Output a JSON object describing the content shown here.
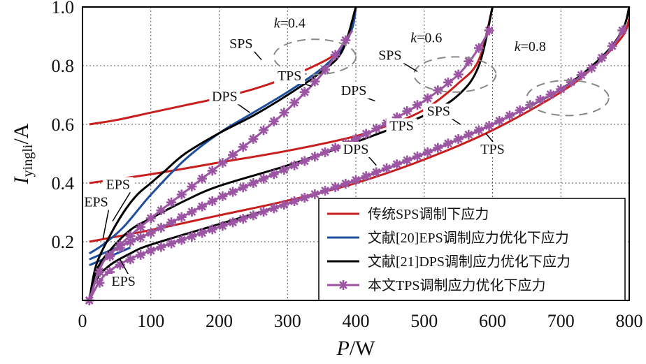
{
  "chart_data": {
    "type": "line",
    "xlabel_main": "P",
    "xlabel_unit": "/W",
    "ylabel_main": "I",
    "ylabel_sub": "yingli",
    "ylabel_unit": "/A",
    "xlim": [
      0,
      800
    ],
    "ylim": [
      0,
      1.0
    ],
    "xticks": [
      0,
      100,
      200,
      300,
      400,
      500,
      600,
      700,
      800
    ],
    "yticks": [
      0.2,
      0.4,
      0.6,
      0.8,
      1.0
    ],
    "ytick_labels": [
      "0.2",
      "0.4",
      "0.6",
      "0.8",
      "1.0"
    ],
    "grid": true,
    "legend_position": "bottom-right",
    "series": [
      {
        "name": "传统SPS调制下应力",
        "color": "#c81e1e",
        "marker": "none",
        "curves": [
          {
            "k": "0.4",
            "x": [
              10,
              50,
              100,
              150,
              200,
              250,
              300,
              340,
              370,
              390,
              400
            ],
            "y": [
              0.6,
              0.615,
              0.64,
              0.665,
              0.69,
              0.72,
              0.76,
              0.8,
              0.84,
              0.9,
              1.0
            ]
          },
          {
            "k": "0.6",
            "x": [
              10,
              100,
              200,
              300,
              400,
              450,
              500,
              550,
              580,
              600
            ],
            "y": [
              0.4,
              0.43,
              0.47,
              0.51,
              0.56,
              0.6,
              0.65,
              0.74,
              0.82,
              1.0
            ]
          },
          {
            "k": "0.8",
            "x": [
              10,
              100,
              200,
              300,
              400,
              500,
              600,
              700,
              750,
              790,
              800
            ],
            "y": [
              0.2,
              0.24,
              0.29,
              0.34,
              0.4,
              0.48,
              0.58,
              0.71,
              0.8,
              0.9,
              0.96
            ]
          }
        ]
      },
      {
        "name": "文献[20]EPS调制应力优化下应力",
        "color": "#1f4e9c",
        "marker": "none",
        "curves": [
          {
            "k": "0.4",
            "x": [
              10,
              30,
              60,
              100,
              150,
              200,
              250,
              300,
              350,
              380,
              395,
              400
            ],
            "y": [
              0.16,
              0.19,
              0.25,
              0.36,
              0.48,
              0.57,
              0.64,
              0.71,
              0.79,
              0.86,
              0.93,
              1.0
            ]
          },
          {
            "k": "0.6",
            "x": [
              10,
              40,
              80
            ],
            "y": [
              0.14,
              0.17,
              0.21
            ]
          },
          {
            "k": "0.8",
            "x": [
              10,
              40,
              70
            ],
            "y": [
              0.12,
              0.15,
              0.18
            ]
          }
        ]
      },
      {
        "name": "文献[21]DPS调制应力优化下应力",
        "color": "#000000",
        "marker": "none",
        "curves": [
          {
            "k": "0.4",
            "x": [
              10,
              20,
              40,
              60,
              80,
              100,
              120,
              150,
              200,
              250,
              300,
              350,
              380,
              400
            ],
            "y": [
              0.0,
              0.12,
              0.22,
              0.3,
              0.36,
              0.4,
              0.44,
              0.5,
              0.57,
              0.63,
              0.7,
              0.78,
              0.85,
              1.0
            ]
          },
          {
            "k": "0.6",
            "x": [
              10,
              20,
              40,
              70,
              100,
              150,
              200,
              300,
              400,
              500,
              550,
              580,
              600
            ],
            "y": [
              0.0,
              0.1,
              0.17,
              0.24,
              0.28,
              0.34,
              0.39,
              0.46,
              0.54,
              0.63,
              0.7,
              0.8,
              1.0
            ]
          },
          {
            "k": "0.8",
            "x": [
              10,
              20,
              40,
              70,
              100,
              200,
              300,
              400,
              500,
              600,
              700,
              760,
              790,
              800
            ],
            "y": [
              0.0,
              0.07,
              0.12,
              0.16,
              0.19,
              0.26,
              0.33,
              0.41,
              0.5,
              0.6,
              0.72,
              0.83,
              0.92,
              1.0
            ]
          }
        ]
      },
      {
        "name": "本文TPS调制应力优化下应力",
        "color": "#9b55a3",
        "marker": "star",
        "curves": [
          {
            "k": "0.4",
            "x": [
              10,
              30,
              60,
              100,
              150,
              200,
              250,
              300,
              350,
              380,
              395
            ],
            "y": [
              0.0,
              0.13,
              0.2,
              0.28,
              0.37,
              0.46,
              0.55,
              0.65,
              0.77,
              0.87,
              0.92
            ]
          },
          {
            "k": "0.6",
            "x": [
              10,
              30,
              60,
              100,
              150,
              200,
              250,
              300,
              350,
              400,
              450,
              500,
              550,
              580,
              595
            ],
            "y": [
              0.0,
              0.13,
              0.19,
              0.23,
              0.29,
              0.35,
              0.4,
              0.45,
              0.5,
              0.55,
              0.61,
              0.68,
              0.77,
              0.86,
              0.92
            ]
          },
          {
            "k": "0.8",
            "x": [
              10,
              30,
              60,
              100,
              200,
              300,
              400,
              500,
              600,
              700,
              750,
              780,
              795
            ],
            "y": [
              0.0,
              0.08,
              0.13,
              0.17,
              0.25,
              0.33,
              0.41,
              0.5,
              0.6,
              0.72,
              0.8,
              0.88,
              0.94
            ]
          }
        ]
      }
    ],
    "annotations": [
      {
        "text": "SPS",
        "x": 232,
        "y": 0.86,
        "tx": 262,
        "ty": 0.82
      },
      {
        "text": "TPS",
        "x": 303,
        "y": 0.75,
        "tx": 335,
        "ty": 0.73
      },
      {
        "text": "DPS",
        "x": 208,
        "y": 0.68,
        "tx": 245,
        "ty": 0.64
      },
      {
        "text": "SPS",
        "x": 450,
        "y": 0.82,
        "tx": 490,
        "ty": 0.78
      },
      {
        "text": "DPS",
        "x": 397,
        "y": 0.7,
        "tx": 428,
        "ty": 0.68
      },
      {
        "text": "TPS",
        "x": 467,
        "y": 0.58,
        "tx": 465,
        "ty": 0.62
      },
      {
        "text": "SPS",
        "x": 521,
        "y": 0.63,
        "tx": 553,
        "ty": 0.6
      },
      {
        "text": "TPS",
        "x": 600,
        "y": 0.5,
        "tx": 590,
        "ty": 0.57
      },
      {
        "text": "DPS",
        "x": 400,
        "y": 0.5,
        "tx": 430,
        "ty": 0.46
      },
      {
        "text": "EPS",
        "x": 52,
        "y": 0.38,
        "tx": 44,
        "ty": 0.27
      },
      {
        "text": "EPS",
        "x": 20,
        "y": 0.32,
        "tx": 30,
        "ty": 0.21
      },
      {
        "text": "EPS",
        "x": 60,
        "y": 0.05,
        "tx": 55,
        "ty": 0.14
      }
    ],
    "k_labels": [
      {
        "k": "k",
        "val": "=0.4",
        "x": 280,
        "y": 0.93
      },
      {
        "k": "k",
        "val": "=0.6",
        "x": 480,
        "y": 0.88
      },
      {
        "k": "k",
        "val": "=0.8",
        "x": 632,
        "y": 0.85
      }
    ],
    "ellipses": [
      {
        "cx": 340,
        "cy": 0.83,
        "rx": 60,
        "ry": 0.06
      },
      {
        "cx": 545,
        "cy": 0.77,
        "rx": 60,
        "ry": 0.06
      },
      {
        "cx": 710,
        "cy": 0.69,
        "rx": 60,
        "ry": 0.06
      }
    ]
  }
}
